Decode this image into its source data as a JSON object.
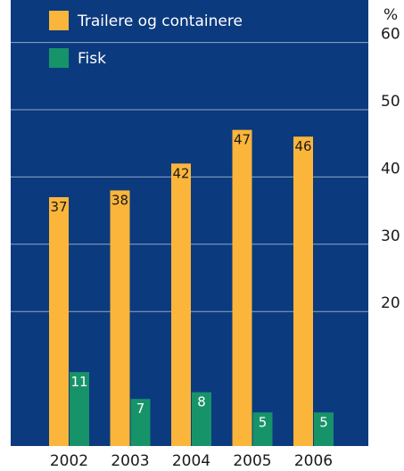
{
  "chart_data": {
    "type": "bar",
    "unit_label": "%",
    "categories": [
      "2002",
      "2003",
      "2004",
      "2005",
      "2006"
    ],
    "series": [
      {
        "name": "Trailere og containere",
        "color": "#fbb53b",
        "values": [
          37,
          38,
          42,
          47,
          46
        ]
      },
      {
        "name": "Fisk",
        "color": "#17936a",
        "values": [
          11,
          7,
          8,
          5,
          5
        ]
      }
    ],
    "y_ticks": [
      20,
      30,
      40,
      50,
      60
    ],
    "ylim": [
      0,
      62
    ],
    "grid": true,
    "legend": "top-left",
    "colors": {
      "background": "#0b3a7e",
      "grid": "#ffffff",
      "label_text": "#1a1a1a"
    }
  }
}
